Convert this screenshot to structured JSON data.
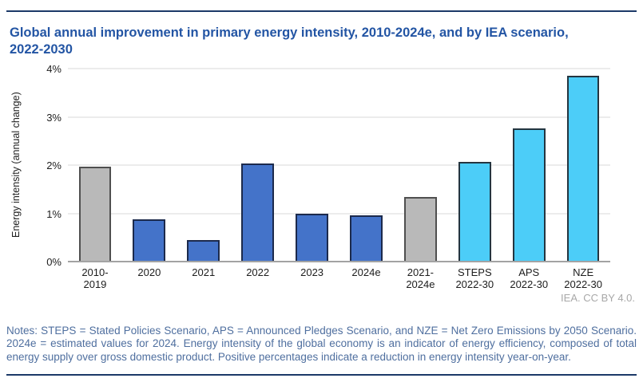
{
  "page": {
    "title": "Global annual improvement in primary energy intensity, 2010-2024e, and by IEA scenario, 2022-2030",
    "credit": "IEA. CC BY 4.0.",
    "notes": "Notes: STEPS = Stated Policies Scenario, APS = Announced Pledges Scenario, and NZE = Net Zero Emissions by 2050 Scenario. 2024e = estimated values for 2024. Energy intensity of the global economy is an indicator of energy efficiency, composed of total energy supply over gross domestic product. Positive percentages indicate a reduction in energy intensity year-on-year."
  },
  "style": {
    "title_color": "#2355a4",
    "notes_color": "#4f6f9f",
    "credit_color": "#a8a8a8",
    "divider_color": "#1c3968",
    "gridline_color": "#ececec",
    "baseline_color": "#a3a3a3",
    "bar_fills": {
      "gray": "#b9b9b9",
      "blue": "#4473c9",
      "cyan": "#4ccdf8"
    },
    "bar_borders": {
      "gray": "#4f4f4f",
      "blue": "#1c2a4c",
      "cyan": "#243540"
    }
  },
  "chart_data": {
    "type": "bar",
    "title": "Global annual improvement in primary energy intensity, 2010-2024e, and by IEA scenario, 2022-2030",
    "xlabel": "",
    "ylabel": "Energy intensity (annual change)",
    "ylim": [
      0,
      4
    ],
    "yticks": [
      "0%",
      "1%",
      "2%",
      "3%",
      "4%"
    ],
    "grid": true,
    "legend": "none",
    "categories": [
      "2010-\n2019",
      "2020",
      "2021",
      "2022",
      "2023",
      "2024e",
      "2021-\n2024e",
      "STEPS\n2022-30",
      "APS\n2022-30",
      "NZE\n2022-30"
    ],
    "values": [
      1.97,
      0.87,
      0.45,
      2.04,
      1.0,
      0.96,
      1.34,
      2.07,
      2.76,
      3.85
    ],
    "colors": [
      "gray",
      "blue",
      "blue",
      "blue",
      "blue",
      "blue",
      "gray",
      "cyan",
      "cyan",
      "cyan"
    ]
  }
}
